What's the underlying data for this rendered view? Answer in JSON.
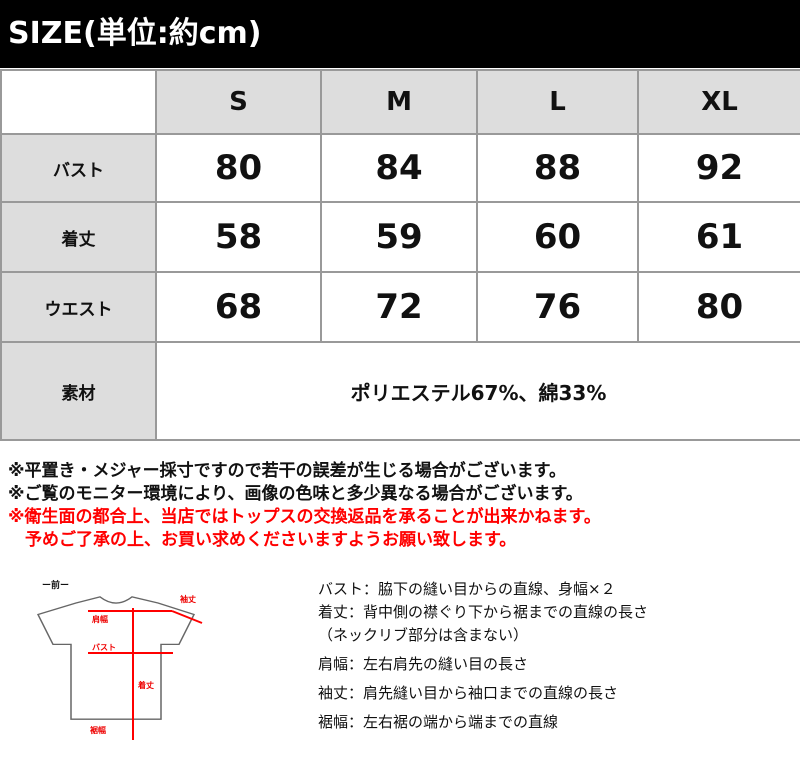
{
  "title": "SIZE(単位:約cm)",
  "table": {
    "corner": "",
    "headers": [
      "S",
      "M",
      "L",
      "XL"
    ],
    "rows": [
      {
        "label": "バスト",
        "values": [
          "80",
          "84",
          "88",
          "92"
        ]
      },
      {
        "label": "着丈",
        "values": [
          "58",
          "59",
          "60",
          "61"
        ]
      },
      {
        "label": "ウエスト",
        "values": [
          "68",
          "72",
          "76",
          "80"
        ]
      }
    ],
    "material": {
      "label": "素材",
      "value": "ポリエステル67%、綿33%"
    }
  },
  "notes": [
    "※平置き・メジャー採寸ですので若干の誤差が生じる場合がございます。",
    "※ご覧のモニター環境により、画像の色味と多少異なる場合がございます。",
    "※衛生面の都合上、当店ではトップスの交換返品を承ることが出来かねます。",
    "　予めご了承の上、お買い求めくださいますようお願い致します。"
  ],
  "diagram": {
    "view": "ー前ー",
    "labels": {
      "sleeve": "袖丈",
      "shoulder": "肩幅",
      "bust": "バスト",
      "length": "着丈",
      "hem": "裾幅"
    }
  },
  "descriptions": [
    "バスト：脇下の縫い目からの直線、身幅×２",
    "着丈：背中側の襟ぐり下から裾までの直線の長さ",
    "（ネックリブ部分は含まない）",
    "肩幅：左右肩先の縫い目の長さ",
    "袖丈：肩先縫い目から袖口までの直線の長さ",
    "裾幅：左右裾の端から端までの直線"
  ],
  "colors": {
    "accent": "#ff0000",
    "header_bg": "#dddddd"
  }
}
